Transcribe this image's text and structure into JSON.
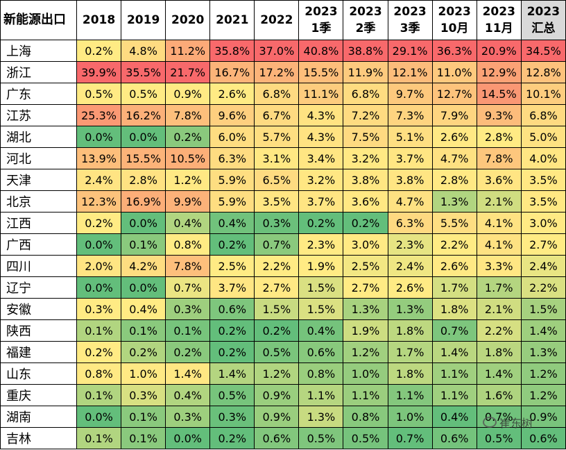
{
  "table": {
    "corner": "新能源出口",
    "columns": [
      {
        "year": "2018"
      },
      {
        "year": "2019"
      },
      {
        "year": "2020"
      },
      {
        "year": "2021"
      },
      {
        "year": "2022"
      },
      {
        "year": "2023",
        "period": "1季"
      },
      {
        "year": "2023",
        "period": "2季"
      },
      {
        "year": "2023",
        "period": "3季"
      },
      {
        "year": "2023",
        "period": "10月"
      },
      {
        "year": "2023",
        "period": "11月"
      },
      {
        "year": "2023",
        "period": "汇总"
      }
    ],
    "rows": [
      {
        "region": "上海",
        "values": [
          "0.2%",
          "4.8%",
          "11.2%",
          "35.8%",
          "37.0%",
          "40.8%",
          "38.8%",
          "29.1%",
          "36.3%",
          "20.9%",
          "34.5%"
        ]
      },
      {
        "region": "浙江",
        "values": [
          "39.9%",
          "35.5%",
          "21.7%",
          "16.7%",
          "17.2%",
          "15.5%",
          "11.9%",
          "12.1%",
          "11.0%",
          "12.9%",
          "12.8%"
        ]
      },
      {
        "region": "广东",
        "values": [
          "0.5%",
          "0.5%",
          "0.9%",
          "2.6%",
          "6.8%",
          "11.1%",
          "6.8%",
          "9.7%",
          "12.7%",
          "14.5%",
          "10.1%"
        ]
      },
      {
        "region": "江苏",
        "values": [
          "25.3%",
          "16.2%",
          "7.8%",
          "9.6%",
          "6.7%",
          "4.3%",
          "7.2%",
          "7.3%",
          "7.9%",
          "9.3%",
          "6.8%"
        ]
      },
      {
        "region": "湖北",
        "values": [
          "0.0%",
          "0.0%",
          "0.2%",
          "6.0%",
          "5.7%",
          "4.3%",
          "7.5%",
          "5.1%",
          "2.6%",
          "2.8%",
          "5.0%"
        ]
      },
      {
        "region": "河北",
        "values": [
          "13.9%",
          "15.5%",
          "10.5%",
          "6.3%",
          "3.1%",
          "3.4%",
          "3.2%",
          "3.7%",
          "4.7%",
          "7.8%",
          "4.0%"
        ]
      },
      {
        "region": "天津",
        "values": [
          "2.4%",
          "2.8%",
          "1.2%",
          "5.9%",
          "6.5%",
          "3.2%",
          "3.8%",
          "3.8%",
          "2.8%",
          "3.6%",
          "3.5%"
        ]
      },
      {
        "region": "北京",
        "values": [
          "12.3%",
          "16.9%",
          "9.9%",
          "5.9%",
          "3.5%",
          "3.7%",
          "3.6%",
          "4.7%",
          "1.3%",
          "2.1%",
          "3.5%"
        ]
      },
      {
        "region": "江西",
        "values": [
          "0.2%",
          "0.0%",
          "0.4%",
          "0.4%",
          "0.3%",
          "0.2%",
          "0.2%",
          "6.3%",
          "5.5%",
          "4.1%",
          "3.0%"
        ]
      },
      {
        "region": "广西",
        "values": [
          "0.0%",
          "0.1%",
          "0.8%",
          "0.2%",
          "0.7%",
          "2.3%",
          "3.0%",
          "2.3%",
          "2.2%",
          "4.1%",
          "2.7%"
        ]
      },
      {
        "region": "四川",
        "values": [
          "2.0%",
          "4.2%",
          "7.8%",
          "2.5%",
          "2.2%",
          "1.9%",
          "2.5%",
          "2.4%",
          "2.6%",
          "3.3%",
          "2.4%"
        ]
      },
      {
        "region": "辽宁",
        "values": [
          "0.0%",
          "0.0%",
          "0.7%",
          "3.7%",
          "2.7%",
          "1.5%",
          "2.7%",
          "2.6%",
          "1.7%",
          "1.7%",
          "2.2%"
        ]
      },
      {
        "region": "安徽",
        "values": [
          "0.3%",
          "0.4%",
          "0.3%",
          "0.6%",
          "1.5%",
          "1.5%",
          "1.3%",
          "1.3%",
          "1.8%",
          "2.1%",
          "1.5%"
        ]
      },
      {
        "region": "陕西",
        "values": [
          "0.1%",
          "0.1%",
          "0.1%",
          "0.2%",
          "0.2%",
          "0.4%",
          "1.9%",
          "1.8%",
          "0.7%",
          "2.2%",
          "1.4%"
        ]
      },
      {
        "region": "福建",
        "values": [
          "0.2%",
          "0.2%",
          "0.2%",
          "0.2%",
          "0.5%",
          "0.6%",
          "1.2%",
          "1.7%",
          "1.4%",
          "1.8%",
          "1.3%"
        ]
      },
      {
        "region": "山东",
        "values": [
          "0.8%",
          "1.0%",
          "1.4%",
          "1.4%",
          "1.2%",
          "0.8%",
          "1.0%",
          "1.8%",
          "1.1%",
          "1.4%",
          "1.2%"
        ]
      },
      {
        "region": "重庆",
        "values": [
          "0.1%",
          "0.3%",
          "0.4%",
          "0.5%",
          "0.9%",
          "1.1%",
          "1.1%",
          "1.1%",
          "1.1%",
          "1.6%",
          "1.2%"
        ]
      },
      {
        "region": "湖南",
        "values": [
          "0.0%",
          "0.1%",
          "0.3%",
          "0.3%",
          "0.9%",
          "1.3%",
          "0.8%",
          "1.0%",
          "0.4%",
          "0.7%",
          "0.9%"
        ]
      },
      {
        "region": "吉林",
        "values": [
          "0.1%",
          "0.1%",
          "0.0%",
          "0.2%",
          "0.6%",
          "0.5%",
          "0.5%",
          "0.7%",
          "0.6%",
          "0.5%",
          "0.6%"
        ]
      }
    ]
  },
  "watermark": "崔东树"
}
